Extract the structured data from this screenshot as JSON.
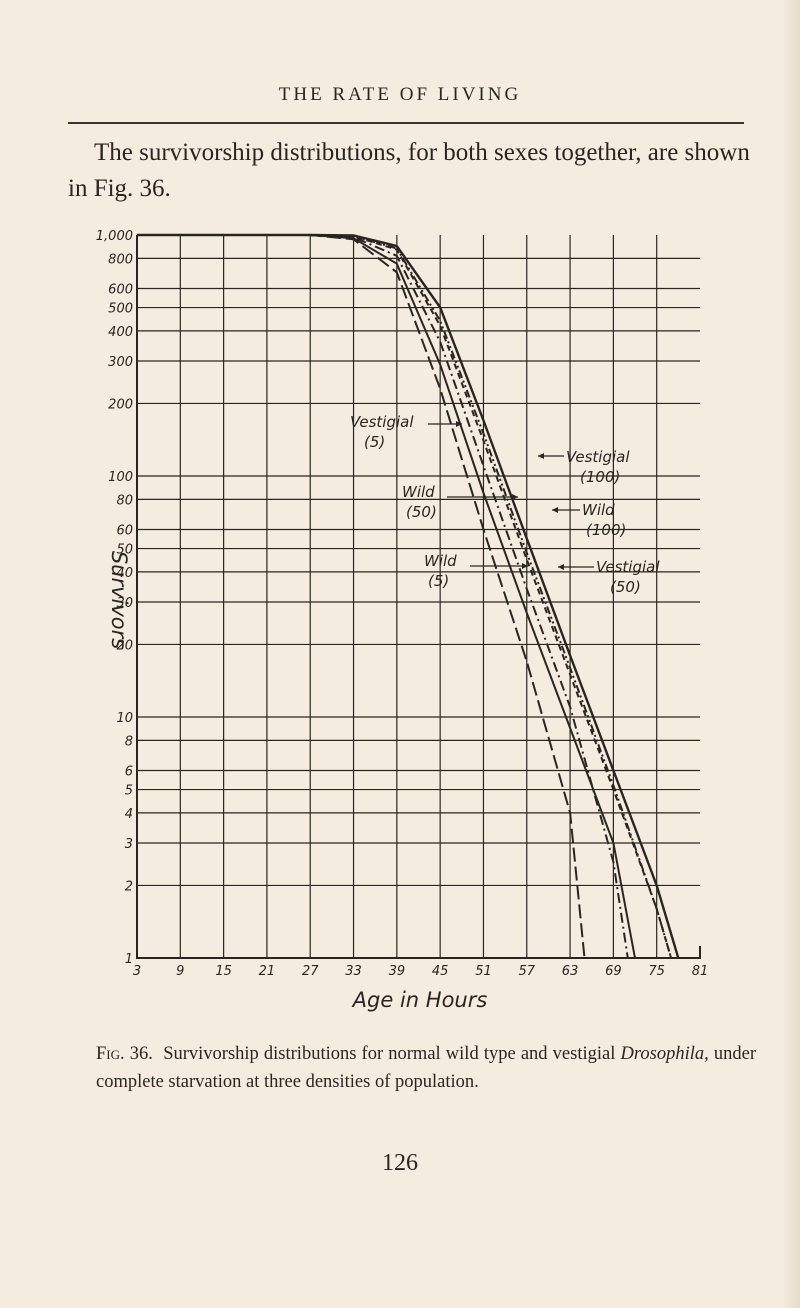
{
  "page": {
    "running_head": "THE RATE OF LIVING",
    "intro_text": "The survivorship distributions, for both sexes together, are shown in Fig. 36.",
    "caption_label": "Fig. 36.",
    "caption_text_1": "Survivorship distributions for normal wild type and vestigial ",
    "caption_italic": "Drosophila,",
    "caption_text_2": " under complete starvation at three densities of population.",
    "folio": "126"
  },
  "chart_data": {
    "type": "line",
    "title": "",
    "xlabel": "Age in Hours",
    "ylabel": "Survivors",
    "yscale": "log",
    "ylim": [
      1,
      1000
    ],
    "xlim": [
      3,
      81
    ],
    "x_ticks": [
      3,
      9,
      15,
      21,
      27,
      33,
      39,
      45,
      51,
      57,
      63,
      69,
      75,
      81
    ],
    "y_ticks": [
      1,
      2,
      3,
      4,
      5,
      6,
      8,
      10,
      20,
      30,
      40,
      50,
      60,
      80,
      100,
      200,
      300,
      400,
      500,
      600,
      800,
      1000
    ],
    "y_tick_labels": [
      "1",
      "2",
      "3",
      "4",
      "5",
      "6",
      "8",
      "10",
      "20",
      "30",
      "40",
      "50",
      "60",
      "80",
      "100",
      "200",
      "300",
      "400",
      "500",
      "600",
      "800",
      "1,000"
    ],
    "grid": true,
    "legend_position": "inline annotations with arrows",
    "series": [
      {
        "name": "Wild (5)",
        "style": "long-dash",
        "x": [
          3,
          27,
          33,
          39,
          45,
          51,
          57,
          63,
          65
        ],
        "values": [
          1000,
          1000,
          960,
          700,
          230,
          60,
          17,
          4,
          1
        ]
      },
      {
        "name": "Wild (50)",
        "style": "solid",
        "x": [
          3,
          27,
          33,
          39,
          45,
          51,
          57,
          63,
          69,
          72
        ],
        "values": [
          1000,
          1000,
          970,
          760,
          290,
          85,
          27,
          9,
          3,
          1
        ]
      },
      {
        "name": "Vestigial (5)",
        "style": "dash-dot",
        "x": [
          3,
          27,
          33,
          39,
          45,
          51,
          57,
          63,
          69,
          71
        ],
        "values": [
          1000,
          1000,
          980,
          820,
          360,
          110,
          34,
          11,
          2.5,
          1
        ]
      },
      {
        "name": "Vestigial (50)",
        "style": "short-dash",
        "x": [
          3,
          27,
          33,
          39,
          45,
          51,
          57,
          63,
          69,
          75,
          77
        ],
        "values": [
          1000,
          1000,
          990,
          870,
          420,
          140,
          45,
          15,
          5,
          1.6,
          1
        ]
      },
      {
        "name": "Wild (100)",
        "style": "dash-dot-dot",
        "x": [
          3,
          27,
          33,
          39,
          45,
          51,
          57,
          63,
          69,
          75,
          77
        ],
        "values": [
          1000,
          1000,
          990,
          880,
          440,
          150,
          48,
          16,
          5.2,
          1.6,
          1
        ]
      },
      {
        "name": "Vestigial (100)",
        "style": "solid-heavy",
        "x": [
          3,
          27,
          33,
          39,
          45,
          51,
          57,
          63,
          69,
          75,
          78
        ],
        "values": [
          1000,
          1000,
          995,
          900,
          500,
          170,
          55,
          18,
          6,
          2,
          1
        ]
      }
    ],
    "annotations": [
      "Vestigial (5)",
      "Wild (50)",
      "Wild (5)",
      "Vestigial (100)",
      "Wild (100)",
      "Vestigial (50)"
    ]
  }
}
